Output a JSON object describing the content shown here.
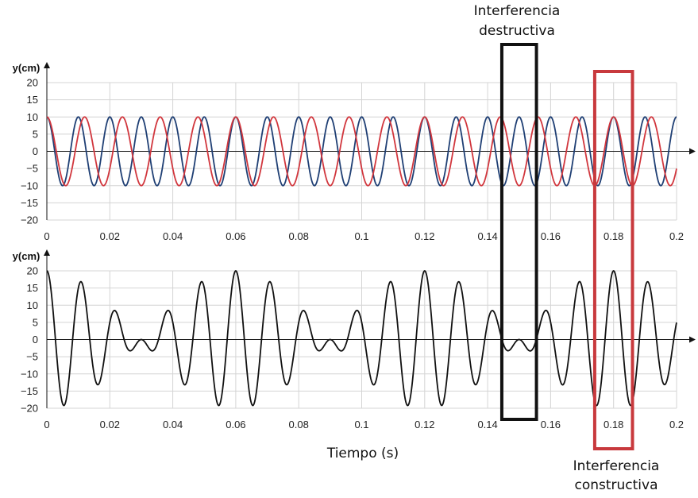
{
  "chart_data": [
    {
      "type": "line",
      "xlabel": "",
      "ylabel": "y(cm)",
      "xlim": [
        0,
        0.2
      ],
      "ylim": [
        -20,
        20
      ],
      "x_ticks": [
        "0",
        "0.02",
        "0.04",
        "0.06",
        "0.08",
        "0.1",
        "0.12",
        "0.14",
        "0.16",
        "0.18",
        "0.2"
      ],
      "y_ticks": [
        "20",
        "15",
        "10",
        "5",
        "0",
        "−5",
        "−10",
        "−15",
        "−20"
      ],
      "grid": true,
      "series": [
        {
          "color": "#1f3f74",
          "function": "10*cos(2*pi*100*t)",
          "amplitude_cm": 10,
          "frequency_hz": 100
        },
        {
          "color": "#d1363d",
          "function": "10*cos(2*pi*83.33*t)",
          "amplitude_cm": 10,
          "frequency_hz": 83.33
        }
      ]
    },
    {
      "type": "line",
      "xlabel": "Tiempo (s)",
      "ylabel": "y(cm)",
      "xlim": [
        0,
        0.2
      ],
      "ylim": [
        -20,
        20
      ],
      "x_ticks": [
        "0",
        "0.02",
        "0.04",
        "0.06",
        "0.08",
        "0.1",
        "0.12",
        "0.14",
        "0.16",
        "0.18",
        "0.2"
      ],
      "y_ticks": [
        "20",
        "15",
        "10",
        "5",
        "0",
        "−5",
        "−10",
        "−15",
        "−20"
      ],
      "grid": true,
      "series": [
        {
          "color": "#111111",
          "function": "sum of the two waves above",
          "amplitude_cm": 20
        }
      ]
    }
  ],
  "annotations": {
    "destructive": {
      "line1": "Interferencia",
      "line2": "destructiva",
      "x_range": [
        0.1445,
        0.1555
      ],
      "color": "#111111"
    },
    "constructive": {
      "line1": "Interferencia",
      "line2": "constructiva",
      "x_range": [
        0.174,
        0.186
      ],
      "color": "#c8393d"
    }
  }
}
